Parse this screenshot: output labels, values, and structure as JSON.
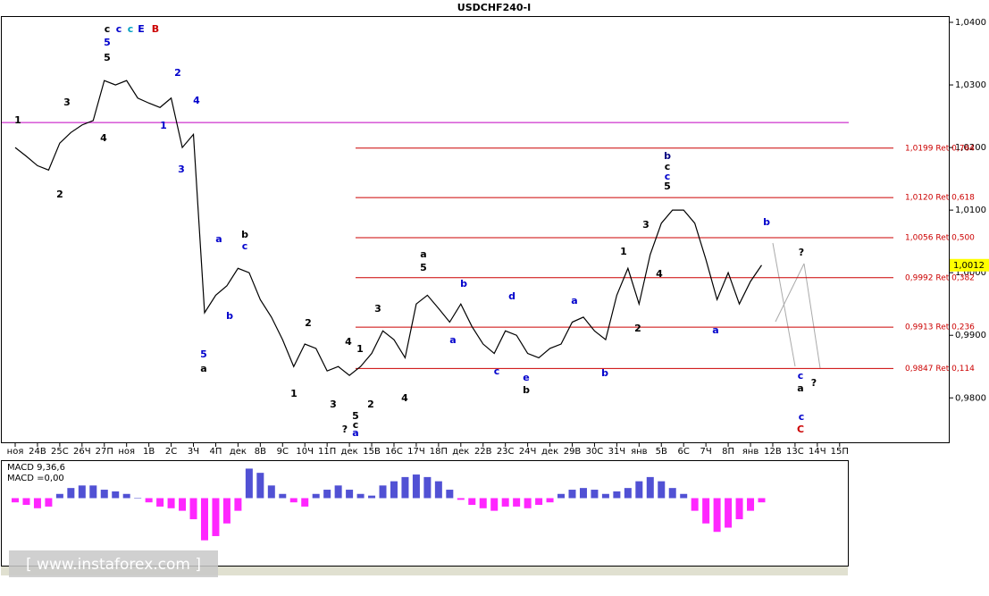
{
  "chart_data": [
    {
      "type": "line",
      "title": "USDCHF240-I",
      "color": "#000000",
      "categories": [
        "ноя",
        null,
        "24В",
        null,
        "25С",
        null,
        "26Ч",
        null,
        "27П",
        null,
        "ноя",
        null,
        "1В",
        null,
        "2С",
        null,
        "3Ч",
        null,
        "4П",
        null,
        "дек",
        null,
        "8В",
        null,
        "9С",
        null,
        "10Ч",
        null,
        "11П",
        null,
        "дек",
        null,
        "15В",
        null,
        "16С",
        null,
        "17Ч",
        null,
        "18П",
        null,
        "дек",
        null,
        "22В",
        null,
        "23С",
        null,
        "24Ч",
        null,
        "дек",
        null,
        "29В",
        null,
        "30С",
        null,
        "31Ч",
        null,
        "янв",
        null,
        "5В",
        null,
        "6С",
        null,
        "7Ч",
        null,
        "8П",
        null,
        "янв",
        null,
        "12В",
        null,
        "13С",
        null,
        "14Ч",
        null,
        "15П",
        null
      ],
      "values": [
        1.02,
        1.0186,
        1.0171,
        1.0164,
        1.0207,
        1.0224,
        1.0236,
        1.0243,
        1.0307,
        1.03,
        1.0307,
        1.0279,
        1.0271,
        1.0264,
        1.0279,
        1.02,
        1.0221,
        0.9936,
        0.9964,
        0.9979,
        1.0007,
        1.0,
        0.9957,
        0.9929,
        0.9893,
        0.985,
        0.9886,
        0.9879,
        0.9843,
        0.985,
        0.9836,
        0.985,
        0.9871,
        0.9907,
        0.9893,
        0.9864,
        0.995,
        0.9964,
        0.9943,
        0.9921,
        0.995,
        0.9914,
        0.9886,
        0.9871,
        0.9907,
        0.99,
        0.9871,
        0.9864,
        0.9879,
        0.9886,
        0.9921,
        0.9929,
        0.9907,
        0.9893,
        0.9964,
        1.0007,
        0.995,
        1.0029,
        1.0079,
        1.01,
        1.01,
        1.0079,
        1.0021,
        0.9957,
        1.0,
        0.995,
        0.9986,
        1.0012,
        null,
        null,
        null,
        null,
        null,
        null,
        null,
        null
      ],
      "ylim": [
        0.9729,
        1.041
      ],
      "yticks": [
        {
          "value": 1.04,
          "label": "1,0400"
        },
        {
          "value": 1.03,
          "label": "1,0300"
        },
        {
          "value": 1.02,
          "label": "1,0200"
        },
        {
          "value": 1.01,
          "label": "1,0100"
        },
        {
          "value": 1.0,
          "label": "1,0000"
        },
        {
          "value": 0.99,
          "label": "0,9900"
        },
        {
          "value": 0.98,
          "label": "0,9800"
        }
      ],
      "levels": [
        {
          "value": 1.0199,
          "label": "1,0199 Ret 0,764"
        },
        {
          "value": 1.012,
          "label": "1,0120 Ret 0,618"
        },
        {
          "value": 1.0056,
          "label": "1,0056 Ret 0,500"
        },
        {
          "value": 0.9992,
          "label": "0,9992 Ret 0,382"
        },
        {
          "value": 0.9913,
          "label": "0,9913 Ret 0,236"
        },
        {
          "value": 0.9847,
          "label": "0,9847 Ret 0,114"
        }
      ],
      "level_color": "#cc0000",
      "hline": {
        "value": 1.024,
        "color": "#c000c0"
      },
      "last_price": {
        "value": 1.0012,
        "label": "1,0012"
      },
      "watermark": "[ www.instaforex.com ]",
      "annotations": [
        {
          "text": "c",
          "color": "#000"
        },
        {
          "text": "c",
          "color": "#0000cc"
        },
        {
          "text": "c",
          "color": "#00a0c0"
        },
        {
          "text": "E",
          "color": "#0000cc"
        },
        {
          "text": "B",
          "color": "#cc0000"
        },
        {
          "text": "5",
          "color": "#0000cc"
        },
        {
          "text": "5",
          "color": "#000"
        },
        {
          "text": "1",
          "color": "#000"
        },
        {
          "text": "3",
          "color": "#000"
        },
        {
          "text": "2",
          "color": "#000"
        },
        {
          "text": "4",
          "color": "#000"
        },
        {
          "text": "1",
          "color": "#0000cc"
        },
        {
          "text": "2",
          "color": "#0000cc"
        },
        {
          "text": "4",
          "color": "#0000cc"
        },
        {
          "text": "3",
          "color": "#0000cc"
        },
        {
          "text": "5",
          "color": "#0000cc"
        },
        {
          "text": "a",
          "color": "#000"
        },
        {
          "text": "a",
          "color": "#0000cc"
        },
        {
          "text": "b",
          "color": "#000"
        },
        {
          "text": "c",
          "color": "#0000cc"
        },
        {
          "text": "b",
          "color": "#0000cc"
        },
        {
          "text": "2",
          "color": "#000"
        },
        {
          "text": "1",
          "color": "#000"
        },
        {
          "text": "3",
          "color": "#000"
        },
        {
          "text": "4",
          "color": "#000"
        },
        {
          "text": "1",
          "color": "#000"
        },
        {
          "text": "?",
          "color": "#000"
        },
        {
          "text": "5",
          "color": "#000"
        },
        {
          "text": "c",
          "color": "#000"
        },
        {
          "text": "a",
          "color": "#0000cc"
        },
        {
          "text": "2",
          "color": "#000"
        },
        {
          "text": "3",
          "color": "#000"
        },
        {
          "text": "4",
          "color": "#000"
        },
        {
          "text": "a",
          "color": "#000"
        },
        {
          "text": "5",
          "color": "#000"
        },
        {
          "text": "b",
          "color": "#0000cc"
        },
        {
          "text": "a",
          "color": "#0000cc"
        },
        {
          "text": "c",
          "color": "#0000cc"
        },
        {
          "text": "d",
          "color": "#0000cc"
        },
        {
          "text": "e",
          "color": "#0000cc"
        },
        {
          "text": "b",
          "color": "#000"
        },
        {
          "text": "a",
          "color": "#0000cc"
        },
        {
          "text": "b",
          "color": "#0000cc"
        },
        {
          "text": "1",
          "color": "#000"
        },
        {
          "text": "3",
          "color": "#000"
        },
        {
          "text": "2",
          "color": "#000"
        },
        {
          "text": "4",
          "color": "#000"
        },
        {
          "text": "b",
          "color": "#000080"
        },
        {
          "text": "c",
          "color": "#000"
        },
        {
          "text": "c",
          "color": "#0000cc"
        },
        {
          "text": "5",
          "color": "#000"
        },
        {
          "text": "b",
          "color": "#0000cc"
        },
        {
          "text": "a",
          "color": "#0000cc"
        },
        {
          "text": "?",
          "color": "#000"
        },
        {
          "text": "c",
          "color": "#0000cc"
        },
        {
          "text": "a",
          "color": "#000"
        },
        {
          "text": "?",
          "color": "#000"
        },
        {
          "text": "c",
          "color": "#0000cc"
        },
        {
          "text": "C",
          "color": "#cc0000"
        }
      ]
    },
    {
      "type": "bar",
      "title": "MACD 9,36,6",
      "readout": "MACD =0,00",
      "positive_color": "#3333cc",
      "negative_color": "#ff00ff",
      "ylim": [
        -80,
        45
      ],
      "values": [
        -5,
        -8,
        -12,
        -10,
        5,
        12,
        15,
        15,
        10,
        8,
        5,
        0,
        -5,
        -10,
        -12,
        -15,
        -25,
        -50,
        -45,
        -30,
        -15,
        35,
        30,
        15,
        5,
        -5,
        -10,
        5,
        10,
        15,
        10,
        5,
        3,
        15,
        20,
        25,
        28,
        25,
        20,
        10,
        -2,
        -8,
        -12,
        -15,
        -10,
        -10,
        -12,
        -8,
        -5,
        5,
        10,
        12,
        10,
        5,
        8,
        12,
        20,
        25,
        20,
        12,
        5,
        -15,
        -30,
        -40,
        -35,
        -25,
        -15,
        -5
      ]
    }
  ]
}
